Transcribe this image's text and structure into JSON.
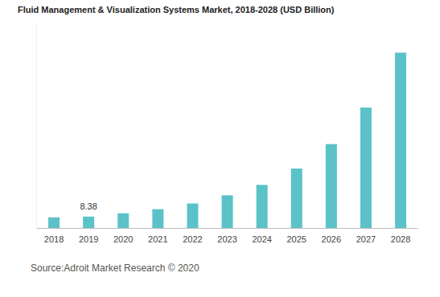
{
  "chart_data": {
    "type": "bar",
    "title": "Fluid Management & Visualization Systems Market, 2018-2028 (USD Billion)",
    "categories": [
      "2018",
      "2019",
      "2020",
      "2021",
      "2022",
      "2023",
      "2024",
      "2025",
      "2026",
      "2027",
      "2028"
    ],
    "values": [
      7.8,
      8.38,
      10.8,
      13.8,
      18,
      24,
      31.7,
      43.7,
      61.7,
      88.6,
      129
    ],
    "value_labels": [
      null,
      "8.38",
      null,
      null,
      null,
      null,
      null,
      null,
      null,
      null,
      null
    ],
    "color": "#5bc2c8",
    "ylim": [
      0,
      150
    ],
    "grid": false,
    "tick_labels": "x",
    "source": "Source:Adroit Market Research © 2020"
  }
}
